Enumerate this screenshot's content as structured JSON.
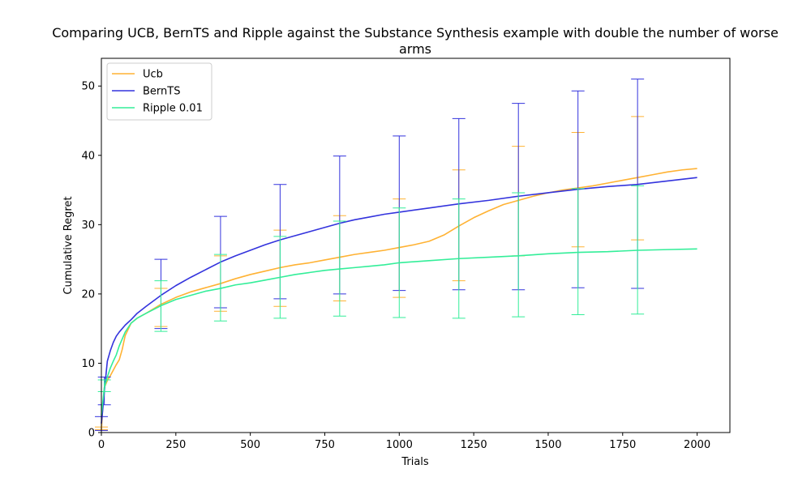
{
  "chart_data": {
    "type": "line",
    "title_line1": "Comparing UCB, BernTS and Ripple against the Substance Synthesis example with double the number of worse",
    "title_line2": "arms",
    "xlabel": "Trials",
    "ylabel": "Cumulative Regret",
    "xlim": [
      0,
      2110
    ],
    "ylim": [
      0,
      54
    ],
    "xticks": [
      0,
      250,
      500,
      750,
      1000,
      1250,
      1500,
      1750,
      2000
    ],
    "yticks": [
      0,
      10,
      20,
      30,
      40,
      50
    ],
    "legend_position": "upper-left",
    "grid": false,
    "series": [
      {
        "name": "Ucb",
        "color": "#ffb233",
        "x": [
          0,
          5,
          10,
          20,
          30,
          40,
          50,
          60,
          70,
          80,
          100,
          120,
          150,
          200,
          250,
          300,
          350,
          400,
          450,
          500,
          550,
          600,
          650,
          700,
          750,
          800,
          850,
          900,
          950,
          1000,
          1050,
          1100,
          1150,
          1200,
          1250,
          1300,
          1350,
          1400,
          1450,
          1500,
          1550,
          1600,
          1650,
          1700,
          1750,
          1800,
          1850,
          1900,
          1950,
          2000
        ],
        "values": [
          0.4,
          4,
          6.5,
          7.5,
          8.2,
          9.0,
          9.8,
          10.5,
          12,
          14,
          15.8,
          16.5,
          17.2,
          18.5,
          19.5,
          20.3,
          20.9,
          21.5,
          22.2,
          22.8,
          23.3,
          23.8,
          24.2,
          24.5,
          24.9,
          25.3,
          25.7,
          26.0,
          26.3,
          26.7,
          27.1,
          27.6,
          28.5,
          29.8,
          31.0,
          32.0,
          32.9,
          33.5,
          34.1,
          34.6,
          35.0,
          35.3,
          35.6,
          36.0,
          36.4,
          36.8,
          37.2,
          37.6,
          37.9,
          38.1
        ],
        "errorbars": [
          {
            "x": 0,
            "y": 0.5,
            "lo": 0.4,
            "hi": 0.8
          },
          {
            "x": 200,
            "y": 18.2,
            "lo": 15.3,
            "hi": 20.8
          },
          {
            "x": 400,
            "y": 21.4,
            "lo": 17.5,
            "hi": 25.5
          },
          {
            "x": 600,
            "y": 23.7,
            "lo": 18.2,
            "hi": 29.2
          },
          {
            "x": 800,
            "y": 25.2,
            "lo": 19.0,
            "hi": 31.3
          },
          {
            "x": 1000,
            "y": 26.6,
            "lo": 19.5,
            "hi": 33.7
          },
          {
            "x": 1200,
            "y": 29.8,
            "lo": 21.9,
            "hi": 37.9
          },
          {
            "x": 1400,
            "y": 33.4,
            "lo": 25.5,
            "hi": 41.3
          },
          {
            "x": 1600,
            "y": 35.3,
            "lo": 26.8,
            "hi": 43.3
          },
          {
            "x": 1800,
            "y": 36.8,
            "lo": 27.8,
            "hi": 45.6
          }
        ]
      },
      {
        "name": "BernTS",
        "color": "#3333dd",
        "x": [
          0,
          5,
          10,
          20,
          30,
          40,
          50,
          60,
          80,
          100,
          120,
          150,
          200,
          250,
          300,
          350,
          400,
          450,
          500,
          550,
          600,
          650,
          700,
          750,
          800,
          850,
          900,
          950,
          1000,
          1100,
          1200,
          1300,
          1400,
          1500,
          1600,
          1700,
          1800,
          1900,
          2000
        ],
        "values": [
          1.3,
          3.5,
          6.0,
          10.3,
          11.8,
          13.0,
          13.9,
          14.5,
          15.5,
          16.3,
          17.2,
          18.2,
          19.8,
          21.2,
          22.4,
          23.5,
          24.6,
          25.5,
          26.3,
          27.1,
          27.8,
          28.4,
          29.0,
          29.6,
          30.2,
          30.7,
          31.1,
          31.5,
          31.8,
          32.4,
          33.0,
          33.5,
          34.1,
          34.6,
          35.1,
          35.5,
          35.8,
          36.3,
          36.8
        ],
        "errorbars": [
          {
            "x": 0,
            "y": 1.3,
            "lo": 0.3,
            "hi": 2.3
          },
          {
            "x": 10,
            "y": 6.0,
            "lo": 4.0,
            "hi": 8.0
          },
          {
            "x": 200,
            "y": 19.8,
            "lo": 15.0,
            "hi": 25.0
          },
          {
            "x": 400,
            "y": 24.6,
            "lo": 18.0,
            "hi": 31.2
          },
          {
            "x": 600,
            "y": 27.8,
            "lo": 19.3,
            "hi": 35.8
          },
          {
            "x": 800,
            "y": 30.2,
            "lo": 20.0,
            "hi": 39.9
          },
          {
            "x": 1000,
            "y": 31.8,
            "lo": 20.5,
            "hi": 42.8
          },
          {
            "x": 1200,
            "y": 33.0,
            "lo": 20.6,
            "hi": 45.3
          },
          {
            "x": 1400,
            "y": 34.1,
            "lo": 20.6,
            "hi": 47.5
          },
          {
            "x": 1600,
            "y": 35.1,
            "lo": 20.9,
            "hi": 49.3
          },
          {
            "x": 1800,
            "y": 35.8,
            "lo": 20.8,
            "hi": 51.0
          }
        ]
      },
      {
        "name": "Ripple 0.01",
        "color": "#33ee99",
        "x": [
          0,
          5,
          10,
          20,
          30,
          40,
          50,
          60,
          80,
          100,
          120,
          150,
          200,
          250,
          300,
          350,
          400,
          450,
          500,
          550,
          600,
          650,
          700,
          750,
          800,
          850,
          900,
          950,
          1000,
          1100,
          1200,
          1300,
          1400,
          1500,
          1600,
          1700,
          1800,
          1900,
          2000
        ],
        "values": [
          2.5,
          4.5,
          6.5,
          8.0,
          9.3,
          10.3,
          11.2,
          12.5,
          14.5,
          15.8,
          16.5,
          17.2,
          18.3,
          19.2,
          19.8,
          20.4,
          20.8,
          21.3,
          21.6,
          22.0,
          22.4,
          22.8,
          23.1,
          23.4,
          23.6,
          23.8,
          24.0,
          24.2,
          24.5,
          24.8,
          25.1,
          25.3,
          25.5,
          25.8,
          26.0,
          26.1,
          26.3,
          26.4,
          26.5
        ],
        "errorbars": [
          {
            "x": 10,
            "y": 6.5,
            "lo": 5.9,
            "hi": 7.6
          },
          {
            "x": 200,
            "y": 18.3,
            "lo": 14.6,
            "hi": 21.9
          },
          {
            "x": 400,
            "y": 20.8,
            "lo": 16.1,
            "hi": 25.7
          },
          {
            "x": 600,
            "y": 22.4,
            "lo": 16.5,
            "hi": 28.3
          },
          {
            "x": 800,
            "y": 23.6,
            "lo": 16.8,
            "hi": 30.5
          },
          {
            "x": 1000,
            "y": 24.5,
            "lo": 16.6,
            "hi": 32.4
          },
          {
            "x": 1200,
            "y": 25.1,
            "lo": 16.5,
            "hi": 33.7
          },
          {
            "x": 1400,
            "y": 25.5,
            "lo": 16.7,
            "hi": 34.6
          },
          {
            "x": 1600,
            "y": 26.0,
            "lo": 17.0,
            "hi": 35.2
          },
          {
            "x": 1800,
            "y": 26.3,
            "lo": 17.1,
            "hi": 35.6
          }
        ]
      }
    ]
  }
}
